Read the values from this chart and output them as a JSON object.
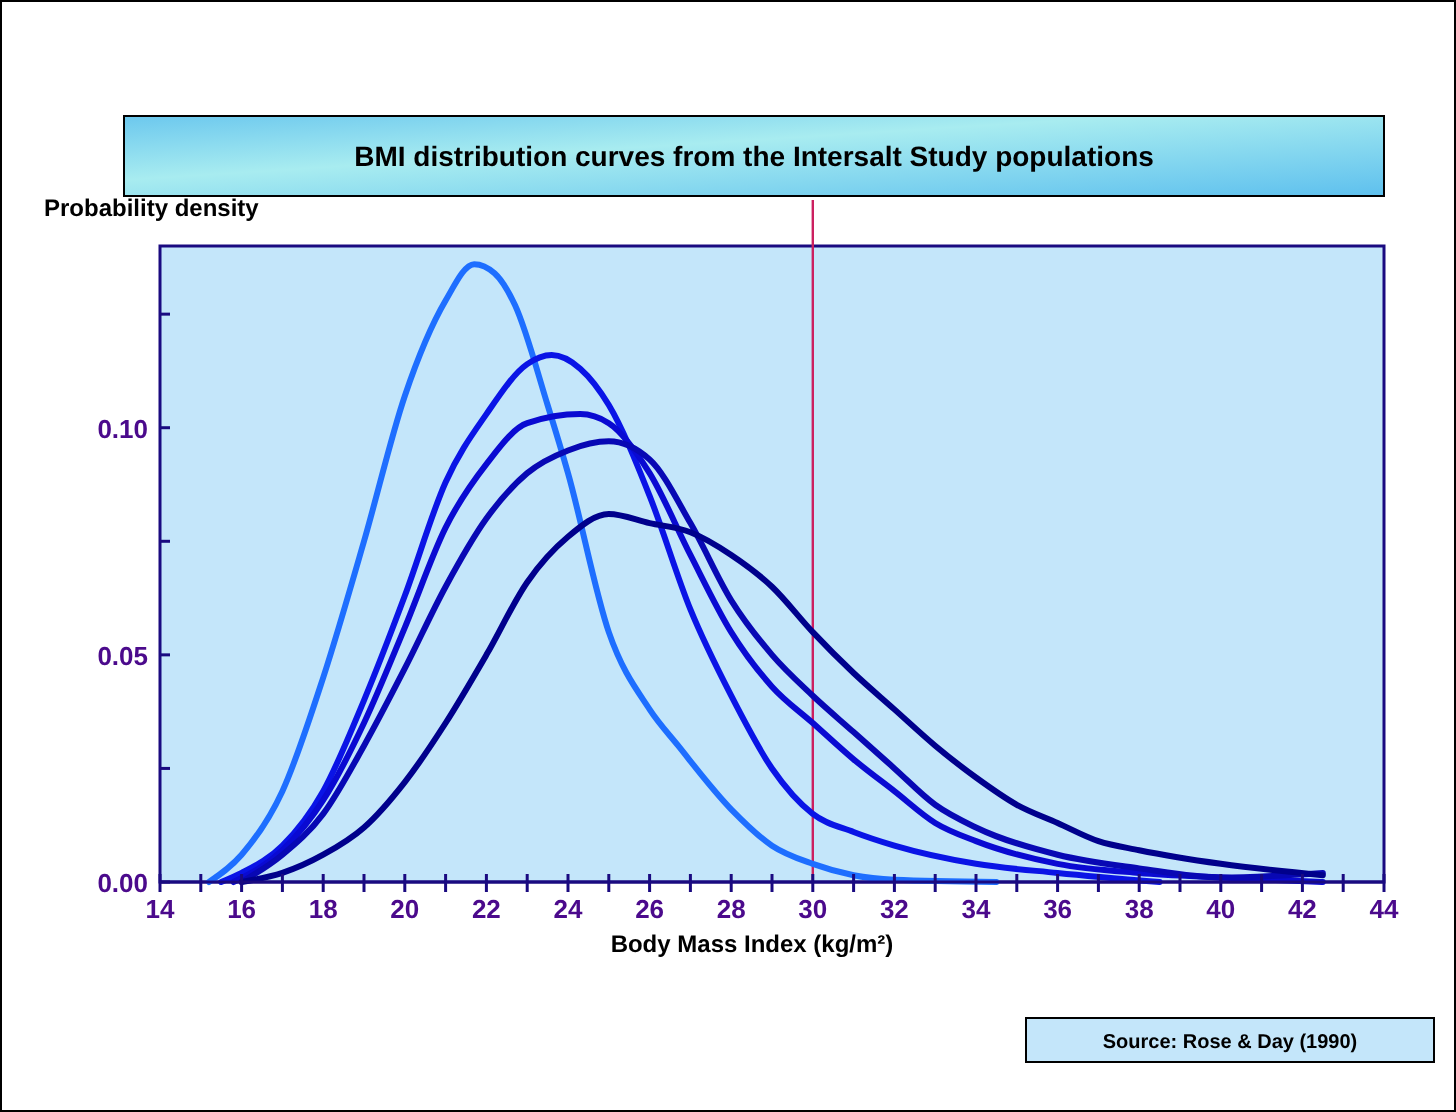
{
  "chart_data": {
    "type": "line",
    "title": "BMI distribution curves from the Intersalt Study populations",
    "xlabel": "Body Mass Index (kg/m²)",
    "ylabel": "Probability density",
    "annotations": [
      "Source: Rose & Day (1990)"
    ],
    "xlim": [
      14,
      44
    ],
    "xticks": [
      14,
      {
        "value": 15,
        "label": null
      },
      16,
      {
        "value": 17,
        "label": null
      },
      18,
      {
        "value": 19,
        "label": null
      },
      20,
      {
        "value": 21,
        "label": null
      },
      22,
      {
        "value": 23,
        "label": null
      },
      24,
      {
        "value": 25,
        "label": null
      },
      26,
      {
        "value": 27,
        "label": null
      },
      28,
      {
        "value": 29,
        "label": null
      },
      30,
      {
        "value": 31,
        "label": null
      },
      32,
      {
        "value": 33,
        "label": null
      },
      34,
      {
        "value": 35,
        "label": null
      },
      36,
      {
        "value": 37,
        "label": null
      },
      38,
      {
        "value": 39,
        "label": null
      },
      40,
      {
        "value": 41,
        "label": null
      },
      42,
      {
        "value": 43,
        "label": null
      },
      44
    ],
    "ylim": [
      0,
      0.14
    ],
    "yticks": [
      {
        "value": 0,
        "label": "0.00"
      },
      {
        "value": 0.025,
        "label": null
      },
      0.05,
      {
        "value": 0.075,
        "label": null
      },
      {
        "value": 0.1,
        "label": "0.10"
      },
      {
        "value": 0.125,
        "label": null
      }
    ],
    "grid": false,
    "marker": "none",
    "line_style": "solid",
    "ref_lines": [
      {
        "axis": "x",
        "value": 30,
        "color": "#cc2060"
      }
    ],
    "series": [
      {
        "color": "#1e6eff",
        "x": [
          15.2,
          16,
          17,
          18,
          19,
          20,
          21,
          21.7,
          22.2,
          22.7,
          23.5,
          24,
          25,
          26,
          26.7,
          28,
          29,
          30,
          31,
          32,
          34.5
        ],
        "values": [
          0,
          0.006,
          0.02,
          0.045,
          0.075,
          0.107,
          0.128,
          0.136,
          0.134,
          0.127,
          0.105,
          0.09,
          0.055,
          0.038,
          0.03,
          0.016,
          0.008,
          0.004,
          0.0015,
          0.0005,
          0
        ]
      },
      {
        "color": "#0a14e6",
        "x": [
          15.5,
          16,
          17,
          18,
          19,
          20,
          21,
          22,
          23,
          23.6,
          24.3,
          25,
          26,
          27,
          28,
          29,
          30,
          31,
          32,
          34,
          36,
          38.5
        ],
        "values": [
          0,
          0.002,
          0.008,
          0.02,
          0.04,
          0.063,
          0.088,
          0.103,
          0.114,
          0.116,
          0.113,
          0.105,
          0.085,
          0.06,
          0.041,
          0.025,
          0.015,
          0.011,
          0.008,
          0.004,
          0.002,
          0
        ]
      },
      {
        "color": "#0a0ad2",
        "x": [
          15.8,
          17,
          18,
          19,
          20,
          21,
          22,
          23,
          24.3,
          25,
          26,
          27,
          28,
          29,
          30,
          31,
          32,
          33,
          34,
          36,
          38,
          40,
          42.5
        ],
        "values": [
          0,
          0.007,
          0.018,
          0.035,
          0.056,
          0.078,
          0.092,
          0.101,
          0.103,
          0.101,
          0.09,
          0.072,
          0.055,
          0.043,
          0.035,
          0.027,
          0.02,
          0.013,
          0.009,
          0.004,
          0.002,
          0.001,
          0
        ]
      },
      {
        "color": "#0808b4",
        "x": [
          16,
          17,
          18,
          19,
          20,
          21,
          22,
          23,
          24,
          25,
          26,
          27,
          28,
          29,
          30,
          31,
          32,
          33,
          34,
          36,
          38,
          40,
          42.5
        ],
        "values": [
          0,
          0.006,
          0.015,
          0.03,
          0.047,
          0.065,
          0.08,
          0.09,
          0.095,
          0.097,
          0.093,
          0.079,
          0.062,
          0.05,
          0.041,
          0.033,
          0.025,
          0.017,
          0.012,
          0.006,
          0.003,
          0.001,
          0.002
        ]
      },
      {
        "color": "#00008c",
        "x": [
          16,
          17,
          18,
          19,
          20,
          21,
          22,
          23,
          24,
          25,
          26,
          27,
          28,
          29,
          30,
          31,
          32,
          33,
          34,
          35,
          36,
          37,
          38,
          40,
          42.5
        ],
        "values": [
          0,
          0.002,
          0.006,
          0.012,
          0.022,
          0.035,
          0.05,
          0.066,
          0.076,
          0.081,
          0.079,
          0.077,
          0.072,
          0.065,
          0.055,
          0.046,
          0.038,
          0.03,
          0.023,
          0.017,
          0.013,
          0.009,
          0.007,
          0.004,
          0.0015
        ]
      }
    ]
  }
}
